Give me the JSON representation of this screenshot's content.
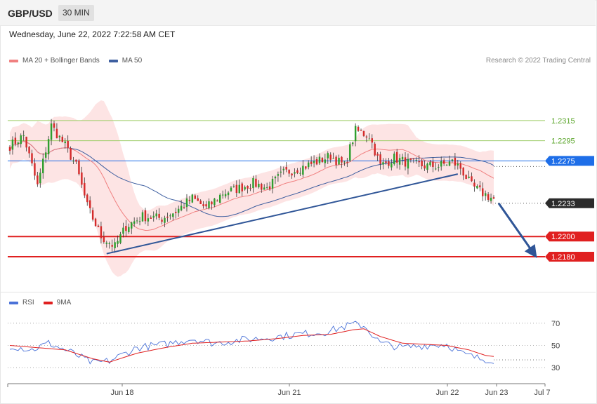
{
  "header": {
    "symbol": "GBP/USD",
    "timeframe": "30 MIN",
    "datetime": "Wednesday, June 22, 2022 7:22:58 AM CET"
  },
  "legend": {
    "ma20_label": "MA 20 + Bollinger Bands",
    "ma50_label": "MA 50",
    "rsi_label": "RSI",
    "rsi_ma_label": "9MA",
    "credit": "Research © 2022 Trading Central"
  },
  "colors": {
    "up": "#2e9e2e",
    "down": "#d42a2a",
    "band": "#fde1e1",
    "ma20": "#f08080",
    "ma50": "#3e5fa0",
    "trend": "#2f5597",
    "resistance": "#9ccc65",
    "pivot": "#1e6ee8",
    "support": "#e02020",
    "current": "#2b2b2b",
    "rsi": "#4a72d8",
    "rsi_ma": "#e02020"
  },
  "chart_data": [
    {
      "type": "candlestick",
      "title": "GBP/USD 30 MIN",
      "x_ticks": [
        "Jun 18",
        "Jun 21",
        "Jun 22",
        "Jun 23",
        "Jul 7"
      ],
      "ylim": [
        1.2148,
        1.2365
      ],
      "levels": [
        {
          "label": "1.2315",
          "value": 1.2315,
          "kind": "resistance"
        },
        {
          "label": "1.2295",
          "value": 1.2295,
          "kind": "resistance"
        },
        {
          "label": "1.2275",
          "value": 1.2275,
          "kind": "pivot"
        },
        {
          "label": "1.2233",
          "value": 1.2233,
          "kind": "current"
        },
        {
          "label": "1.2200",
          "value": 1.22,
          "kind": "support"
        },
        {
          "label": "1.2180",
          "value": 1.218,
          "kind": "support"
        }
      ],
      "close_anchors": [
        [
          0,
          1.229
        ],
        [
          5,
          1.23
        ],
        [
          10,
          1.225
        ],
        [
          15,
          1.231
        ],
        [
          20,
          1.229
        ],
        [
          24,
          1.227
        ],
        [
          28,
          1.223
        ],
        [
          33,
          1.22
        ],
        [
          38,
          1.219
        ],
        [
          42,
          1.221
        ],
        [
          48,
          1.222
        ],
        [
          55,
          1.2218
        ],
        [
          60,
          1.2225
        ],
        [
          66,
          1.2238
        ],
        [
          71,
          1.2228
        ],
        [
          77,
          1.2243
        ],
        [
          83,
          1.2248
        ],
        [
          88,
          1.2253
        ],
        [
          93,
          1.2248
        ],
        [
          99,
          1.2263
        ],
        [
          105,
          1.2268
        ],
        [
          110,
          1.2273
        ],
        [
          116,
          1.228
        ],
        [
          121,
          1.227
        ],
        [
          125,
          1.2305
        ],
        [
          130,
          1.23
        ],
        [
          134,
          1.227
        ],
        [
          139,
          1.2278
        ],
        [
          144,
          1.2273
        ],
        [
          150,
          1.227
        ],
        [
          155,
          1.227
        ],
        [
          160,
          1.2274
        ],
        [
          163,
          1.2268
        ],
        [
          167,
          1.225
        ],
        [
          171,
          1.2243
        ],
        [
          175,
          1.2237
        ]
      ],
      "trendline": [
        [
          35,
          1.2183
        ],
        [
          162,
          1.2262
        ]
      ],
      "projection": [
        [
          176,
          1.2233
        ],
        [
          190,
          1.218
        ]
      ]
    },
    {
      "type": "line",
      "title": "RSI",
      "ylim": [
        20,
        80
      ],
      "y_ticks": [
        70,
        50,
        30
      ],
      "series": [
        {
          "name": "RSI",
          "anchors": [
            [
              0,
              50
            ],
            [
              8,
              46
            ],
            [
              14,
              52
            ],
            [
              22,
              44
            ],
            [
              30,
              34
            ],
            [
              36,
              36
            ],
            [
              46,
              48
            ],
            [
              56,
              51
            ],
            [
              66,
              56
            ],
            [
              74,
              52
            ],
            [
              84,
              55
            ],
            [
              94,
              57
            ],
            [
              104,
              60
            ],
            [
              114,
              62
            ],
            [
              124,
              69
            ],
            [
              128,
              68
            ],
            [
              134,
              52
            ],
            [
              142,
              48
            ],
            [
              150,
              50
            ],
            [
              158,
              51
            ],
            [
              164,
              42
            ],
            [
              170,
              38
            ],
            [
              175,
              37
            ]
          ]
        },
        {
          "name": "9MA",
          "anchors": [
            [
              0,
              50
            ],
            [
              10,
              48
            ],
            [
              20,
              46
            ],
            [
              30,
              38
            ],
            [
              36,
              35
            ],
            [
              46,
              43
            ],
            [
              56,
              48
            ],
            [
              66,
              52
            ],
            [
              76,
              53
            ],
            [
              86,
              54
            ],
            [
              96,
              56
            ],
            [
              106,
              59
            ],
            [
              116,
              60
            ],
            [
              124,
              64
            ],
            [
              128,
              65
            ],
            [
              134,
              58
            ],
            [
              142,
              52
            ],
            [
              150,
              51
            ],
            [
              158,
              50
            ],
            [
              166,
              46
            ],
            [
              172,
              41
            ],
            [
              175,
              40
            ]
          ]
        }
      ]
    }
  ]
}
